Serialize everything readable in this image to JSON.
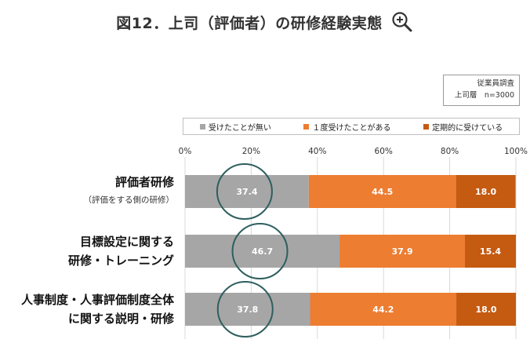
{
  "title": "図12．上司（評価者）の研修経験実態",
  "source_note": [
    "従業員調査",
    "上司層　n=3000"
  ],
  "chart_data": {
    "type": "bar",
    "orientation": "horizontal",
    "stacked": "percent",
    "categories": [
      [
        "評価者研修",
        "（評価をする側の研修）"
      ],
      [
        "目標設定に関する",
        "研修・トレーニング"
      ],
      [
        "人事制度・人事評価制度全体",
        "に関する説明・研修"
      ]
    ],
    "series": [
      {
        "name": "受けたことが無い",
        "color": "#a6a6a6",
        "values": [
          37.4,
          46.7,
          37.8
        ]
      },
      {
        "name": "１度受けたことがある",
        "color": "#ed7d31",
        "values": [
          44.5,
          37.9,
          44.2
        ]
      },
      {
        "name": "定期的に受けている",
        "color": "#c55a11",
        "values": [
          18.0,
          15.4,
          18.0
        ]
      }
    ],
    "xlim": [
      0,
      100
    ],
    "xticks": [
      "0%",
      "20%",
      "40%",
      "60%",
      "80%",
      "100%"
    ],
    "grid": true,
    "legend_position": "top",
    "highlight_series": "受けたことが無い"
  }
}
